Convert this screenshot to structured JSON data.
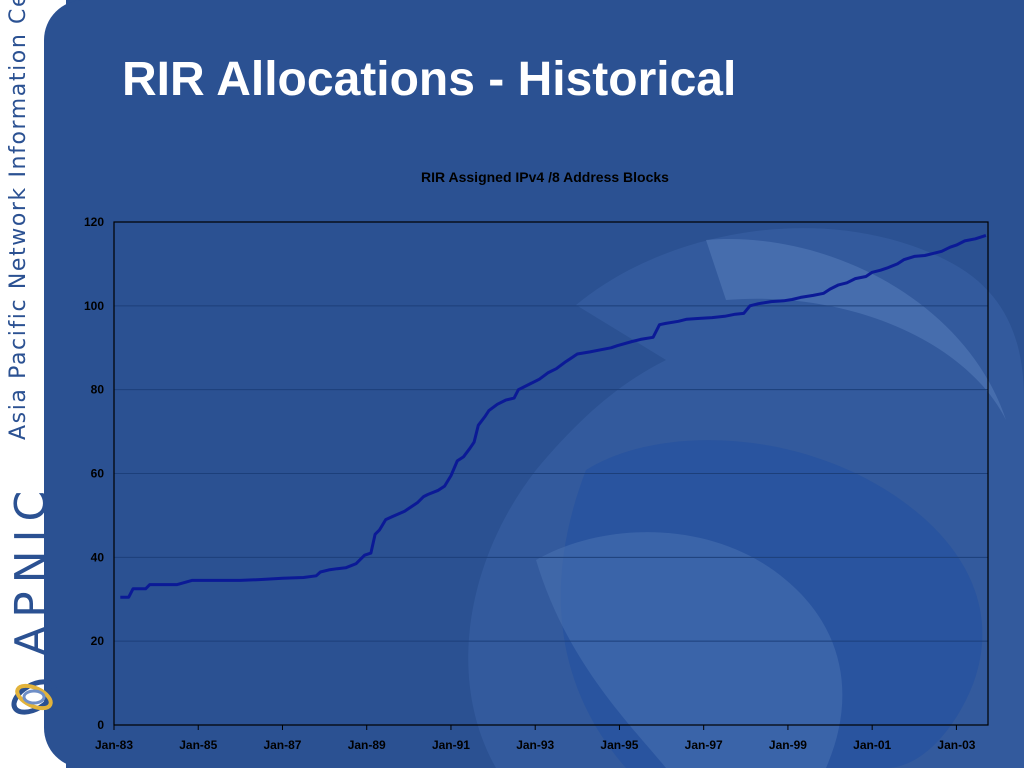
{
  "slide": {
    "title": "RIR Allocations - Historical",
    "side_text": "Asia Pacific Network Information Centre",
    "brand": "APNIC"
  },
  "colors": {
    "background": "#2b5192",
    "side_band": "#ffffff",
    "line": "#0b1a96",
    "title_text": "#ffffff",
    "axis_text": "#000000",
    "gridline": "#1c3f7a"
  },
  "chart_data": {
    "type": "line",
    "title": "RIR Assigned IPv4 /8 Address Blocks",
    "xlabel": "",
    "ylabel": "",
    "ylim": [
      0,
      120
    ],
    "xlim": [
      1983.0,
      2003.75
    ],
    "yticks": [
      "0",
      "20",
      "40",
      "60",
      "80",
      "100",
      "120"
    ],
    "xticks": [
      {
        "label": "Jan-83",
        "x": 1983
      },
      {
        "label": "Jan-85",
        "x": 1985
      },
      {
        "label": "Jan-87",
        "x": 1987
      },
      {
        "label": "Jan-89",
        "x": 1989
      },
      {
        "label": "Jan-91",
        "x": 1991
      },
      {
        "label": "Jan-93",
        "x": 1993
      },
      {
        "label": "Jan-95",
        "x": 1995
      },
      {
        "label": "Jan-97",
        "x": 1997
      },
      {
        "label": "Jan-99",
        "x": 1999
      },
      {
        "label": "Jan-01",
        "x": 2001
      },
      {
        "label": "Jan-03",
        "x": 2003
      }
    ],
    "grid": true,
    "legend": "none",
    "series": [
      {
        "x": [
          1983.15,
          1983.35,
          1983.45,
          1983.75,
          1983.85,
          1984.0,
          1984.5,
          1984.85,
          1984.95,
          1985.5,
          1986.0,
          1986.5,
          1987.0,
          1987.5,
          1987.8,
          1987.9,
          1988.1,
          1988.3,
          1988.5,
          1988.75,
          1988.95,
          1989.1,
          1989.2,
          1989.3,
          1989.45,
          1989.6,
          1989.9,
          1990.2,
          1990.35,
          1990.45,
          1990.7,
          1990.85,
          1991.0,
          1991.15,
          1991.3,
          1991.45,
          1991.55,
          1991.65,
          1991.8,
          1991.9,
          1992.1,
          1992.3,
          1992.5,
          1992.6,
          1992.7,
          1992.9,
          1993.1,
          1993.3,
          1993.5,
          1993.7,
          1993.85,
          1994.0,
          1994.3,
          1994.55,
          1994.8,
          1994.95,
          1995.3,
          1995.5,
          1995.8,
          1995.95,
          1996.1,
          1996.4,
          1996.6,
          1996.9,
          1997.2,
          1997.5,
          1997.75,
          1997.95,
          1998.1,
          1998.3,
          1998.6,
          1998.9,
          1999.1,
          1999.3,
          1999.6,
          1999.85,
          2000.0,
          2000.2,
          2000.4,
          2000.6,
          2000.85,
          2001.0,
          2001.2,
          2001.35,
          2001.6,
          2001.75,
          2002.0,
          2002.25,
          2002.45,
          2002.65,
          2002.85,
          2003.0,
          2003.2,
          2003.45,
          2003.7
        ],
        "y": [
          30.5,
          30.5,
          32.5,
          32.5,
          33.5,
          33.5,
          33.5,
          34.5,
          34.5,
          34.5,
          34.5,
          34.7,
          35.0,
          35.2,
          35.6,
          36.5,
          37.0,
          37.3,
          37.5,
          38.5,
          40.5,
          41.0,
          45.5,
          46.5,
          49.0,
          49.7,
          51.0,
          53.0,
          54.5,
          55.0,
          56.0,
          57.0,
          59.5,
          63.0,
          64.0,
          66.0,
          67.5,
          71.5,
          73.5,
          75.0,
          76.5,
          77.5,
          78.0,
          80.0,
          80.5,
          81.5,
          82.5,
          84.0,
          85.0,
          86.5,
          87.5,
          88.5,
          89.0,
          89.5,
          90.0,
          90.5,
          91.5,
          92.0,
          92.5,
          95.5,
          95.8,
          96.3,
          96.8,
          97.0,
          97.2,
          97.5,
          98.0,
          98.2,
          100.0,
          100.5,
          101.0,
          101.2,
          101.5,
          102.0,
          102.5,
          103.0,
          104.0,
          105.0,
          105.5,
          106.5,
          107.0,
          108.0,
          108.5,
          109.0,
          110.0,
          111.0,
          111.8,
          112.0,
          112.5,
          113.0,
          114.0,
          114.5,
          115.5,
          116.0,
          116.8
        ]
      }
    ]
  }
}
